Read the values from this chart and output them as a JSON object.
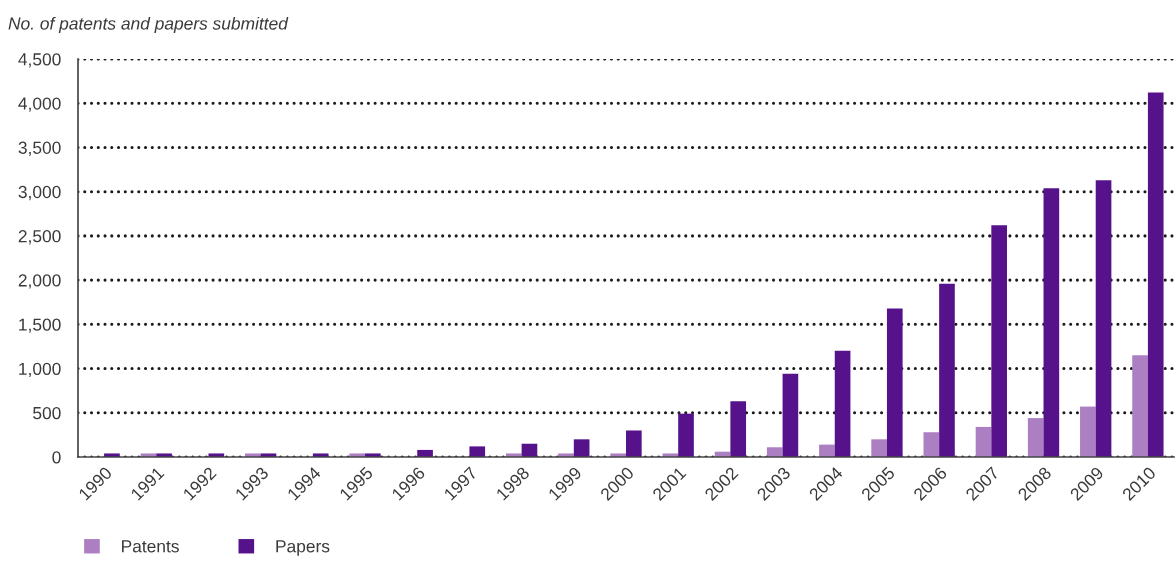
{
  "chart_data": {
    "type": "bar",
    "ylabel": "No. of patents and papers submitted",
    "categories": [
      "1990",
      "1991",
      "1992",
      "1993",
      "1994",
      "1995",
      "1996",
      "1997",
      "1998",
      "1999",
      "2000",
      "2001",
      "2002",
      "2003",
      "2004",
      "2005",
      "2006",
      "2007",
      "2008",
      "2009",
      "2010"
    ],
    "series": [
      {
        "name": "Patents",
        "color": "#ab7fc1",
        "values": [
          null,
          40,
          null,
          40,
          null,
          40,
          null,
          null,
          40,
          40,
          40,
          40,
          60,
          110,
          140,
          200,
          280,
          340,
          440,
          570,
          1150
        ]
      },
      {
        "name": "Papers",
        "color": "#55128b",
        "values": [
          40,
          40,
          40,
          40,
          40,
          40,
          80,
          120,
          150,
          200,
          300,
          490,
          630,
          940,
          1200,
          1680,
          1960,
          2620,
          3040,
          3130,
          4120
        ]
      }
    ],
    "ylim": [
      0,
      4500
    ],
    "yticks": [
      0,
      500,
      {
        "value": 1000,
        "label": "1,000"
      },
      {
        "value": 1500,
        "label": "1,500"
      },
      {
        "value": 2000,
        "label": "2,000"
      },
      {
        "value": 2500,
        "label": "2,500"
      },
      {
        "value": 3000,
        "label": "3,000"
      },
      {
        "value": 3500,
        "label": "3,500"
      },
      {
        "value": 4000,
        "label": "4,000"
      },
      {
        "value": 4500,
        "label": "4,500"
      }
    ],
    "grid": "y",
    "legend": "bottom"
  }
}
